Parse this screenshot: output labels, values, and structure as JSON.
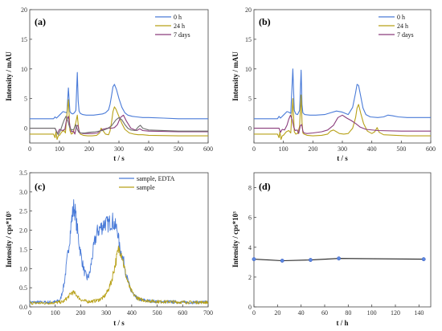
{
  "colors": {
    "blue": "#4a7bd8",
    "gold": "#b8a118",
    "purple": "#8a3c7c",
    "gray": "#6e6e6e",
    "black": "#222222",
    "blueDark": "#3b5fc0",
    "goldDark": "#a08a00"
  },
  "chart_data": [
    {
      "panel": "(a)",
      "type": "line",
      "xlabel": "t / s",
      "ylabel": "Intensity / mAU",
      "xlim": [
        0,
        600
      ],
      "ylim": [
        -2.5,
        20
      ],
      "xticks": [
        0,
        100,
        200,
        300,
        400,
        500,
        600
      ],
      "yticks": [
        0,
        5,
        10,
        15,
        20
      ],
      "legend_placement": "top-right",
      "series": [
        {
          "name": "0 h",
          "color": "#4a7bd8",
          "x": [
            0,
            80,
            85,
            90,
            100,
            112,
            118,
            125,
            130,
            135,
            140,
            145,
            150,
            155,
            160,
            163,
            166,
            170,
            178,
            190,
            205,
            215,
            230,
            245,
            255,
            265,
            270,
            275,
            280,
            285,
            292,
            300,
            310,
            320,
            330,
            345,
            360,
            380,
            400,
            450,
            500,
            600
          ],
          "y": [
            1.6,
            1.6,
            1.9,
            1.7,
            2.2,
            2.8,
            2.7,
            2.6,
            6.8,
            2.8,
            2.5,
            2.4,
            2.6,
            3.0,
            9.4,
            4.6,
            2.9,
            2.5,
            2.3,
            2.2,
            2.2,
            2.2,
            2.3,
            2.4,
            2.6,
            3.1,
            4.0,
            5.5,
            7.0,
            7.4,
            6.5,
            5.0,
            3.5,
            2.6,
            2.2,
            2.0,
            1.9,
            1.8,
            1.8,
            1.7,
            1.6,
            1.6
          ]
        },
        {
          "name": "24 h",
          "color": "#b8a118",
          "x": [
            0,
            80,
            85,
            88,
            92,
            96,
            100,
            108,
            115,
            120,
            125,
            130,
            135,
            140,
            145,
            150,
            155,
            160,
            163,
            166,
            170,
            180,
            195,
            210,
            225,
            235,
            240,
            245,
            255,
            265,
            270,
            275,
            280,
            285,
            290,
            298,
            310,
            320,
            335,
            350,
            365,
            380,
            400,
            500,
            600
          ],
          "y": [
            -1.0,
            -1.0,
            -1.6,
            -0.6,
            -1.9,
            -1.3,
            -1.2,
            -0.6,
            -0.4,
            -0.8,
            2.4,
            4.8,
            -0.4,
            -1.0,
            -0.8,
            0.0,
            1.0,
            2.2,
            0.6,
            -0.6,
            -1.0,
            -1.2,
            -1.3,
            -1.3,
            -1.2,
            -0.8,
            0.0,
            -0.3,
            -1.0,
            -1.1,
            -0.5,
            1.0,
            2.8,
            3.6,
            3.2,
            2.2,
            0.8,
            -0.2,
            -0.8,
            -1.0,
            -1.1,
            -1.1,
            -1.2,
            -1.3,
            -1.3
          ]
        },
        {
          "name": "7 days",
          "color": "#8a3c7c",
          "x": [
            0,
            85,
            88,
            93,
            100,
            110,
            118,
            123,
            130,
            135,
            140,
            147,
            152,
            157,
            162,
            166,
            170,
            180,
            195,
            210,
            228,
            235,
            245,
            260,
            275,
            285,
            295,
            305,
            315,
            325,
            340,
            360,
            370,
            380,
            400,
            500,
            600
          ],
          "y": [
            0.0,
            0.0,
            -0.3,
            -0.9,
            -0.2,
            -0.4,
            -0.2,
            1.2,
            2.0,
            0.4,
            -0.6,
            -0.5,
            -1.0,
            0.3,
            0.5,
            -0.5,
            -0.8,
            -0.9,
            -0.9,
            -0.9,
            -0.8,
            -0.5,
            -0.2,
            0.0,
            0.0,
            0.1,
            0.6,
            1.8,
            2.2,
            1.2,
            0.0,
            -0.4,
            -0.1,
            -0.4,
            -0.5,
            -0.6,
            -0.6
          ]
        },
        {
          "name": "",
          "color": "#6e6e6e",
          "x": [
            0,
            85,
            90,
            96,
            104,
            110,
            116,
            122,
            128,
            134,
            140,
            148,
            155,
            160,
            165,
            172,
            185,
            200,
            220,
            245,
            260,
            275,
            290,
            300,
            310,
            320,
            330,
            340,
            355,
            365,
            372,
            380,
            400,
            500,
            600
          ],
          "y": [
            0.0,
            0.0,
            -0.6,
            -1.1,
            -0.3,
            0.6,
            1.4,
            2.0,
            1.2,
            0.2,
            -0.3,
            -0.2,
            0.6,
            -0.2,
            -0.7,
            -0.8,
            -0.8,
            -0.7,
            -0.6,
            -0.4,
            -0.1,
            0.4,
            1.4,
            1.8,
            1.4,
            0.6,
            0.0,
            -0.3,
            -0.4,
            0.2,
            0.5,
            0.0,
            -0.3,
            -0.5,
            -0.5
          ]
        }
      ]
    },
    {
      "panel": "(b)",
      "type": "line",
      "xlabel": "t / s",
      "ylabel": "Intensity / mAU",
      "xlim": [
        0,
        600
      ],
      "ylim": [
        -2.5,
        20
      ],
      "xticks": [
        0,
        100,
        200,
        300,
        400,
        500,
        600
      ],
      "yticks": [
        0,
        5,
        10,
        15,
        20
      ],
      "legend_placement": "top-right",
      "series": [
        {
          "name": "0 h",
          "color": "#4a7bd8",
          "x": [
            0,
            80,
            85,
            90,
            100,
            112,
            118,
            125,
            132,
            137,
            142,
            148,
            155,
            160,
            163,
            166,
            172,
            190,
            210,
            240,
            260,
            280,
            300,
            320,
            335,
            345,
            350,
            355,
            362,
            370,
            380,
            395,
            420,
            440,
            455,
            470,
            490,
            520,
            600
          ],
          "y": [
            1.6,
            1.6,
            2.0,
            1.7,
            2.2,
            2.8,
            2.7,
            2.5,
            10.0,
            3.0,
            2.4,
            2.3,
            3.0,
            9.8,
            4.0,
            2.6,
            2.3,
            2.2,
            2.2,
            2.3,
            2.6,
            2.9,
            2.7,
            2.3,
            3.5,
            6.0,
            7.4,
            7.2,
            5.5,
            3.4,
            2.3,
            1.9,
            1.8,
            1.9,
            2.2,
            2.1,
            1.9,
            1.8,
            1.8
          ]
        },
        {
          "name": "24 h",
          "color": "#b8a118",
          "x": [
            0,
            80,
            85,
            88,
            92,
            96,
            100,
            110,
            118,
            125,
            132,
            137,
            142,
            148,
            155,
            160,
            163,
            166,
            170,
            180,
            200,
            230,
            250,
            260,
            270,
            280,
            290,
            305,
            320,
            335,
            345,
            350,
            355,
            362,
            372,
            385,
            400,
            410,
            418,
            425,
            440,
            480,
            520,
            600
          ],
          "y": [
            -1.0,
            -1.0,
            -1.6,
            -0.6,
            -1.9,
            -1.3,
            -1.2,
            -0.6,
            -0.4,
            -0.8,
            5.0,
            -0.6,
            -1.0,
            -0.9,
            0.3,
            5.6,
            1.0,
            -0.8,
            -1.0,
            -1.2,
            -1.3,
            -1.2,
            -1.0,
            -0.5,
            -0.3,
            -0.6,
            -0.9,
            -1.0,
            -0.9,
            0.0,
            1.8,
            3.4,
            4.0,
            2.6,
            0.8,
            -0.5,
            -0.9,
            -0.6,
            0.1,
            -0.7,
            -1.1,
            -1.2,
            -1.3,
            -1.3
          ]
        },
        {
          "name": "7 days",
          "color": "#8a3c7c",
          "x": [
            0,
            85,
            90,
            96,
            104,
            112,
            118,
            124,
            130,
            135,
            140,
            147,
            152,
            157,
            162,
            166,
            170,
            180,
            200,
            230,
            250,
            270,
            285,
            300,
            315,
            330,
            345,
            360,
            380,
            420,
            500,
            600
          ],
          "y": [
            0.0,
            0.0,
            -0.7,
            -0.2,
            -0.3,
            0.5,
            1.5,
            2.2,
            1.4,
            0.2,
            -0.4,
            -0.3,
            -0.9,
            0.4,
            0.6,
            -0.5,
            -0.8,
            -0.9,
            -0.8,
            -0.6,
            -0.3,
            0.5,
            1.8,
            2.2,
            1.7,
            1.3,
            0.8,
            0.2,
            -0.2,
            -0.4,
            -0.5,
            -0.5
          ]
        }
      ]
    },
    {
      "panel": "(c)",
      "type": "line",
      "xlabel": "t / s",
      "ylabel": "Intensity / cps*10³",
      "xlim": [
        0,
        700
      ],
      "ylim": [
        0,
        3.5
      ],
      "xticks": [
        0,
        100,
        200,
        300,
        400,
        500,
        600,
        700
      ],
      "yticks": [
        0.0,
        0.5,
        1.0,
        1.5,
        2.0,
        2.5,
        3.0,
        3.5
      ],
      "legend_placement": "top-right",
      "series": [
        {
          "name": "sample, EDTA",
          "color": "#4a7bd8",
          "x": [
            0,
            60,
            100,
            120,
            135,
            150,
            165,
            172,
            178,
            185,
            195,
            205,
            215,
            225,
            235,
            245,
            255,
            265,
            275,
            285,
            295,
            305,
            315,
            325,
            335,
            345,
            352,
            360,
            370,
            380,
            395,
            410,
            430,
            460,
            500,
            560,
            620,
            700
          ],
          "y": [
            0.12,
            0.12,
            0.13,
            0.18,
            0.6,
            1.4,
            2.3,
            2.6,
            2.5,
            2.1,
            1.6,
            1.2,
            0.9,
            0.75,
            0.85,
            1.3,
            1.7,
            1.95,
            2.05,
            2.1,
            2.2,
            2.15,
            2.2,
            2.25,
            2.1,
            2.0,
            1.55,
            1.4,
            1.15,
            0.8,
            0.45,
            0.28,
            0.2,
            0.16,
            0.14,
            0.13,
            0.12,
            0.12
          ]
        },
        {
          "name": "sample",
          "color": "#b8a118",
          "x": [
            0,
            60,
            100,
            130,
            150,
            165,
            175,
            185,
            195,
            210,
            230,
            250,
            270,
            290,
            305,
            320,
            330,
            340,
            348,
            355,
            362,
            370,
            380,
            395,
            410,
            430,
            460,
            500,
            560,
            620,
            700
          ],
          "y": [
            0.1,
            0.1,
            0.11,
            0.13,
            0.25,
            0.38,
            0.36,
            0.3,
            0.22,
            0.16,
            0.14,
            0.15,
            0.18,
            0.25,
            0.4,
            0.65,
            0.95,
            1.25,
            1.48,
            1.5,
            1.35,
            1.05,
            0.75,
            0.45,
            0.3,
            0.2,
            0.16,
            0.14,
            0.13,
            0.12,
            0.12
          ]
        }
      ]
    },
    {
      "panel": "(d)",
      "type": "line",
      "xlabel": "t / h",
      "ylabel": "Intensity / cps*10³",
      "xlim": [
        0,
        150
      ],
      "ylim": [
        0,
        9
      ],
      "xticks": [
        0,
        20,
        40,
        60,
        80,
        100,
        120,
        140
      ],
      "yticks": [
        0,
        2,
        4,
        6,
        8
      ],
      "series": [
        {
          "name": "",
          "color": "#222222",
          "x": [
            0,
            24,
            48,
            72,
            144
          ],
          "y": [
            3.2,
            3.1,
            3.15,
            3.25,
            3.2
          ]
        }
      ]
    }
  ]
}
